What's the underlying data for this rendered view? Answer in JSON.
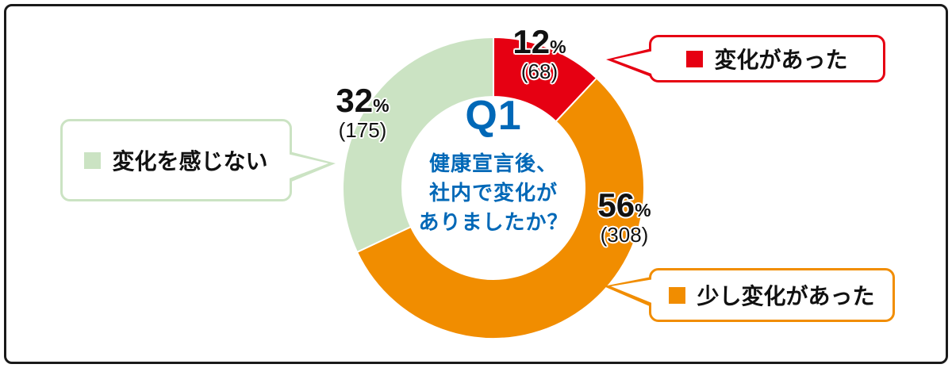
{
  "chart_data": {
    "type": "pie",
    "subtype": "donut",
    "title": "Q1 健康宣言後、社内で変化がありましたか？",
    "center_label": "Q1",
    "center_question_lines": [
      "健康宣言後、",
      "社内で変化が",
      "ありましたか？"
    ],
    "unit": "%",
    "start_angle_deg": 0,
    "direction": "clockwise",
    "legend_position": "callouts",
    "segments": [
      {
        "id": "change",
        "label": "変化があった",
        "percent": 12,
        "count": 68,
        "count_label": "(68)",
        "color": "#e60012"
      },
      {
        "id": "slight_change",
        "label": "少し変化があった",
        "percent": 56,
        "count": 308,
        "count_label": "(308)",
        "color": "#f18d00"
      },
      {
        "id": "no_change",
        "label": "変化を感じない",
        "percent": 32,
        "count": 175,
        "count_label": "(175)",
        "color": "#cbe3c3"
      }
    ]
  },
  "colors": {
    "blue": "#0068b7",
    "frame": "#1a1a1a",
    "text": "#111111",
    "background": "#ffffff"
  }
}
